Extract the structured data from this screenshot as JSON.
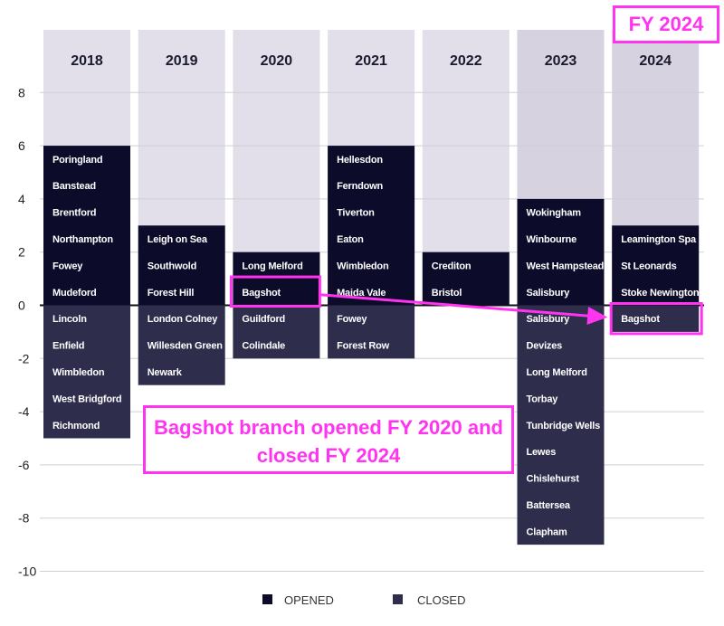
{
  "chart_data": {
    "type": "bar",
    "categories": [
      "2018",
      "2019",
      "2020",
      "2021",
      "2022",
      "2023",
      "2024"
    ],
    "series": [
      {
        "name": "OPENED",
        "values": [
          6,
          3,
          2,
          6,
          2,
          4,
          3
        ]
      },
      {
        "name": "CLOSED",
        "values": [
          -5,
          -3,
          -2,
          -2,
          0,
          -9,
          -1
        ]
      }
    ],
    "opened_branches": {
      "2018": [
        "Poringland",
        "Banstead",
        "Brentford",
        "Northampton",
        "Fowey",
        "Mudeford"
      ],
      "2019": [
        "Leigh on Sea",
        "Southwold",
        "Forest Hill"
      ],
      "2020": [
        "Long Melford",
        "Bagshot"
      ],
      "2021": [
        "Hellesdon",
        "Ferndown",
        "Tiverton",
        "Eaton",
        "Wimbledon",
        "Maida Vale"
      ],
      "2022": [
        "Crediton",
        "Bristol"
      ],
      "2023": [
        "Wokingham",
        "Winbourne",
        "West Hampstead",
        "Salisbury"
      ],
      "2024": [
        "Leamington Spa",
        "St Leonards",
        "Stoke Newington"
      ]
    },
    "closed_branches": {
      "2018": [
        "Lincoln",
        "Enfield",
        "Wimbledon",
        "West Bridgford",
        "Richmond"
      ],
      "2019": [
        "London Colney",
        "Willesden Green",
        "Newark"
      ],
      "2020": [
        "Guildford",
        "Colindale"
      ],
      "2021": [
        "Fowey",
        "Forest Row"
      ],
      "2022": [],
      "2023": [
        "Salisbury",
        "Devizes",
        "Long Melford",
        "Torbay",
        "Tunbridge Wells",
        "Lewes",
        "Chislehurst",
        "Battersea",
        "Clapham"
      ],
      "2024": [
        "Bagshot"
      ]
    },
    "yticks": [
      8,
      6,
      4,
      2,
      0,
      -2,
      -4,
      -6,
      -8,
      -10
    ],
    "ylim": [
      -10,
      10
    ],
    "grid": true,
    "legend": {
      "placement": "bottom-center",
      "entries": [
        "OPENED",
        "CLOSED"
      ]
    },
    "colors": {
      "opened": "#0c0b2a",
      "closed": "#2f2d4c",
      "column_bg": "#e2dfea",
      "column_bg_highlight": "#d6d2df",
      "annotation": "#ff33f0"
    }
  },
  "annotations": {
    "fy_label": "FY 2024",
    "note": "Bagshot branch opened FY 2020 and closed FY 2024",
    "highlight_from": {
      "year": "2020",
      "branch": "Bagshot"
    },
    "highlight_to": {
      "year": "2024",
      "branch": "Bagshot"
    }
  }
}
